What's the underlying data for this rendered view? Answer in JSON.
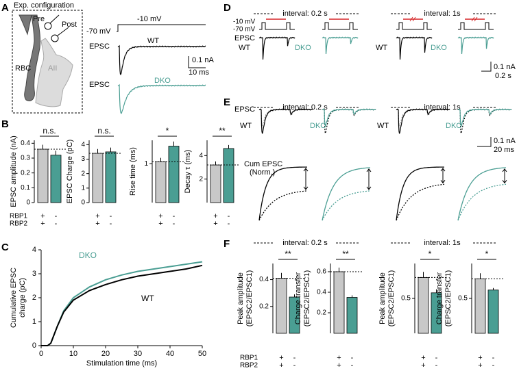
{
  "figure": {
    "panel_labels": [
      "A",
      "B",
      "C",
      "D",
      "E",
      "F"
    ],
    "genotype_rows": [
      "RBP1",
      "RBP2"
    ],
    "a": {
      "title": "Exp. configuration",
      "cells": [
        "Pre",
        "Post",
        "RBC",
        "AII"
      ],
      "voltage": [
        "-70 mV",
        "-10 mV"
      ],
      "traces": [
        {
          "label": "EPSC",
          "genotype": "WT"
        },
        {
          "label": "EPSC",
          "genotype": "DKO"
        }
      ],
      "scale": [
        "0.1 nA",
        "10 ms"
      ]
    },
    "d": {
      "intervals": [
        "interval: 0.2 s",
        "interval: 1s"
      ],
      "voltage": [
        "-10 mV",
        "-70 mV"
      ],
      "trace_label": "EPSC",
      "genotypes": [
        "WT",
        "DKO",
        "WT",
        "DKO"
      ],
      "scale": [
        "0.1 nA",
        "0.2 s"
      ]
    },
    "e": {
      "intervals": [
        "interval: 0.2 s",
        "interval: 1s"
      ],
      "trace_label": "EPSC",
      "genotypes": [
        "WT",
        "DKO",
        "WT",
        "DKO"
      ],
      "scale": [
        "0.1 nA",
        "20 ms"
      ],
      "cum_label": [
        "Cum EPSC",
        "(Norm.)"
      ]
    },
    "f": {
      "intervals": [
        "interval: 0.2 s",
        "interval: 1s"
      ]
    }
  },
  "chart_data": [
    {
      "type": "bar",
      "ylabel": "EPSC amplitude (nA)",
      "values": [
        0.36,
        0.32
      ],
      "errors": [
        0.03,
        0.03
      ],
      "colors": [
        "#c8c8c8",
        "#4a9e93"
      ],
      "ylim": [
        0,
        0.42
      ],
      "yticks": [
        0,
        0.1,
        0.2,
        0.3,
        0.4
      ],
      "significance": "n.s.",
      "genotype": [
        [
          "+",
          "-"
        ],
        [
          "+",
          "-"
        ]
      ]
    },
    {
      "type": "bar",
      "ylabel": "EPSC Charge (pC)",
      "values": [
        3.4,
        3.5
      ],
      "errors": [
        0.3,
        0.3
      ],
      "colors": [
        "#c8c8c8",
        "#4a9e93"
      ],
      "ylim": [
        0,
        4.3
      ],
      "yticks": [
        0,
        1,
        2,
        3,
        4
      ],
      "significance": "n.s.",
      "genotype": [
        [
          "+",
          "-"
        ],
        [
          "+",
          "-"
        ]
      ]
    },
    {
      "type": "bar",
      "ylabel": "Rise time (ms)",
      "values": [
        1.05,
        1.45
      ],
      "errors": [
        0.1,
        0.12
      ],
      "colors": [
        "#c8c8c8",
        "#4a9e93"
      ],
      "ylim": [
        0,
        1.6
      ],
      "yticks": [
        1
      ],
      "significance": "*",
      "genotype": [
        [
          "+",
          "-"
        ],
        [
          "+",
          "-"
        ]
      ]
    },
    {
      "type": "bar",
      "ylabel": "Decay τ (ms)",
      "values": [
        3.2,
        4.6
      ],
      "errors": [
        0.3,
        0.3
      ],
      "colors": [
        "#c8c8c8",
        "#4a9e93"
      ],
      "ylim": [
        0,
        5.3
      ],
      "yticks": [
        2,
        4
      ],
      "significance": "**",
      "genotype": [
        [
          "+",
          "-"
        ],
        [
          "+",
          "-"
        ]
      ]
    },
    {
      "type": "line",
      "ylabel": [
        "Cumulative EPSC",
        "charge (pC)"
      ],
      "xlabel": "Stimulation time (ms)",
      "x": [
        0,
        2,
        3,
        5,
        7,
        10,
        15,
        20,
        25,
        30,
        35,
        40,
        45,
        50
      ],
      "series": [
        {
          "name": "DKO",
          "color": "#4a9e93",
          "values": [
            0,
            0,
            0.1,
            0.8,
            1.45,
            2.0,
            2.45,
            2.75,
            2.95,
            3.1,
            3.2,
            3.3,
            3.4,
            3.5
          ]
        },
        {
          "name": "WT",
          "color": "#000000",
          "values": [
            0,
            0,
            0.1,
            0.8,
            1.4,
            1.9,
            2.3,
            2.55,
            2.75,
            2.9,
            3.0,
            3.1,
            3.2,
            3.35
          ]
        }
      ],
      "xlim": [
        0,
        50
      ],
      "xticks": [
        0,
        10,
        20,
        30,
        40,
        50
      ],
      "ylim": [
        0,
        4
      ],
      "yticks": [
        0,
        1,
        2,
        3,
        4
      ]
    },
    {
      "type": "bar",
      "ylabel": [
        "Peak amplitude",
        "(EPSC2/EPSC1)"
      ],
      "values": [
        0.41,
        0.27
      ],
      "errors": [
        0.04,
        0.02
      ],
      "colors": [
        "#c8c8c8",
        "#4a9e93"
      ],
      "ylim": [
        0,
        0.52
      ],
      "yticks": [
        0.2,
        0.4
      ],
      "significance": "**",
      "genotype": [
        [
          "+",
          "-"
        ],
        [
          "+",
          "-"
        ]
      ]
    },
    {
      "type": "bar",
      "ylabel": [
        "Charge transfer",
        "(EPSC2/EPSC1)"
      ],
      "values": [
        0.6,
        0.35
      ],
      "errors": [
        0.04,
        0.02
      ],
      "colors": [
        "#c8c8c8",
        "#4a9e93"
      ],
      "ylim": [
        0,
        0.68
      ],
      "yticks": [
        0.2,
        0.4,
        0.6
      ],
      "significance": "**",
      "genotype": [
        [
          "+",
          "-"
        ],
        [
          "+",
          "-"
        ]
      ]
    },
    {
      "type": "bar",
      "ylabel": [
        "Peak amplitude",
        "(EPSC2/EPSC1)"
      ],
      "values": [
        0.8,
        0.58
      ],
      "errors": [
        0.08,
        0.05
      ],
      "colors": [
        "#c8c8c8",
        "#4a9e93"
      ],
      "ylim": [
        0,
        1.0
      ],
      "yticks": [
        0.5
      ],
      "significance": "*",
      "genotype": [
        [
          "+",
          "-"
        ],
        [
          "+",
          "-"
        ]
      ]
    },
    {
      "type": "bar",
      "ylabel": [
        "Charge transfer",
        "(EPSC2/EPSC1)"
      ],
      "values": [
        0.78,
        0.62
      ],
      "errors": [
        0.08,
        0.03
      ],
      "colors": [
        "#c8c8c8",
        "#4a9e93"
      ],
      "ylim": [
        0,
        1.0
      ],
      "yticks": [
        0.5
      ],
      "significance": "*",
      "genotype": [
        [
          "+",
          "-"
        ],
        [
          "+",
          "-"
        ]
      ]
    }
  ]
}
